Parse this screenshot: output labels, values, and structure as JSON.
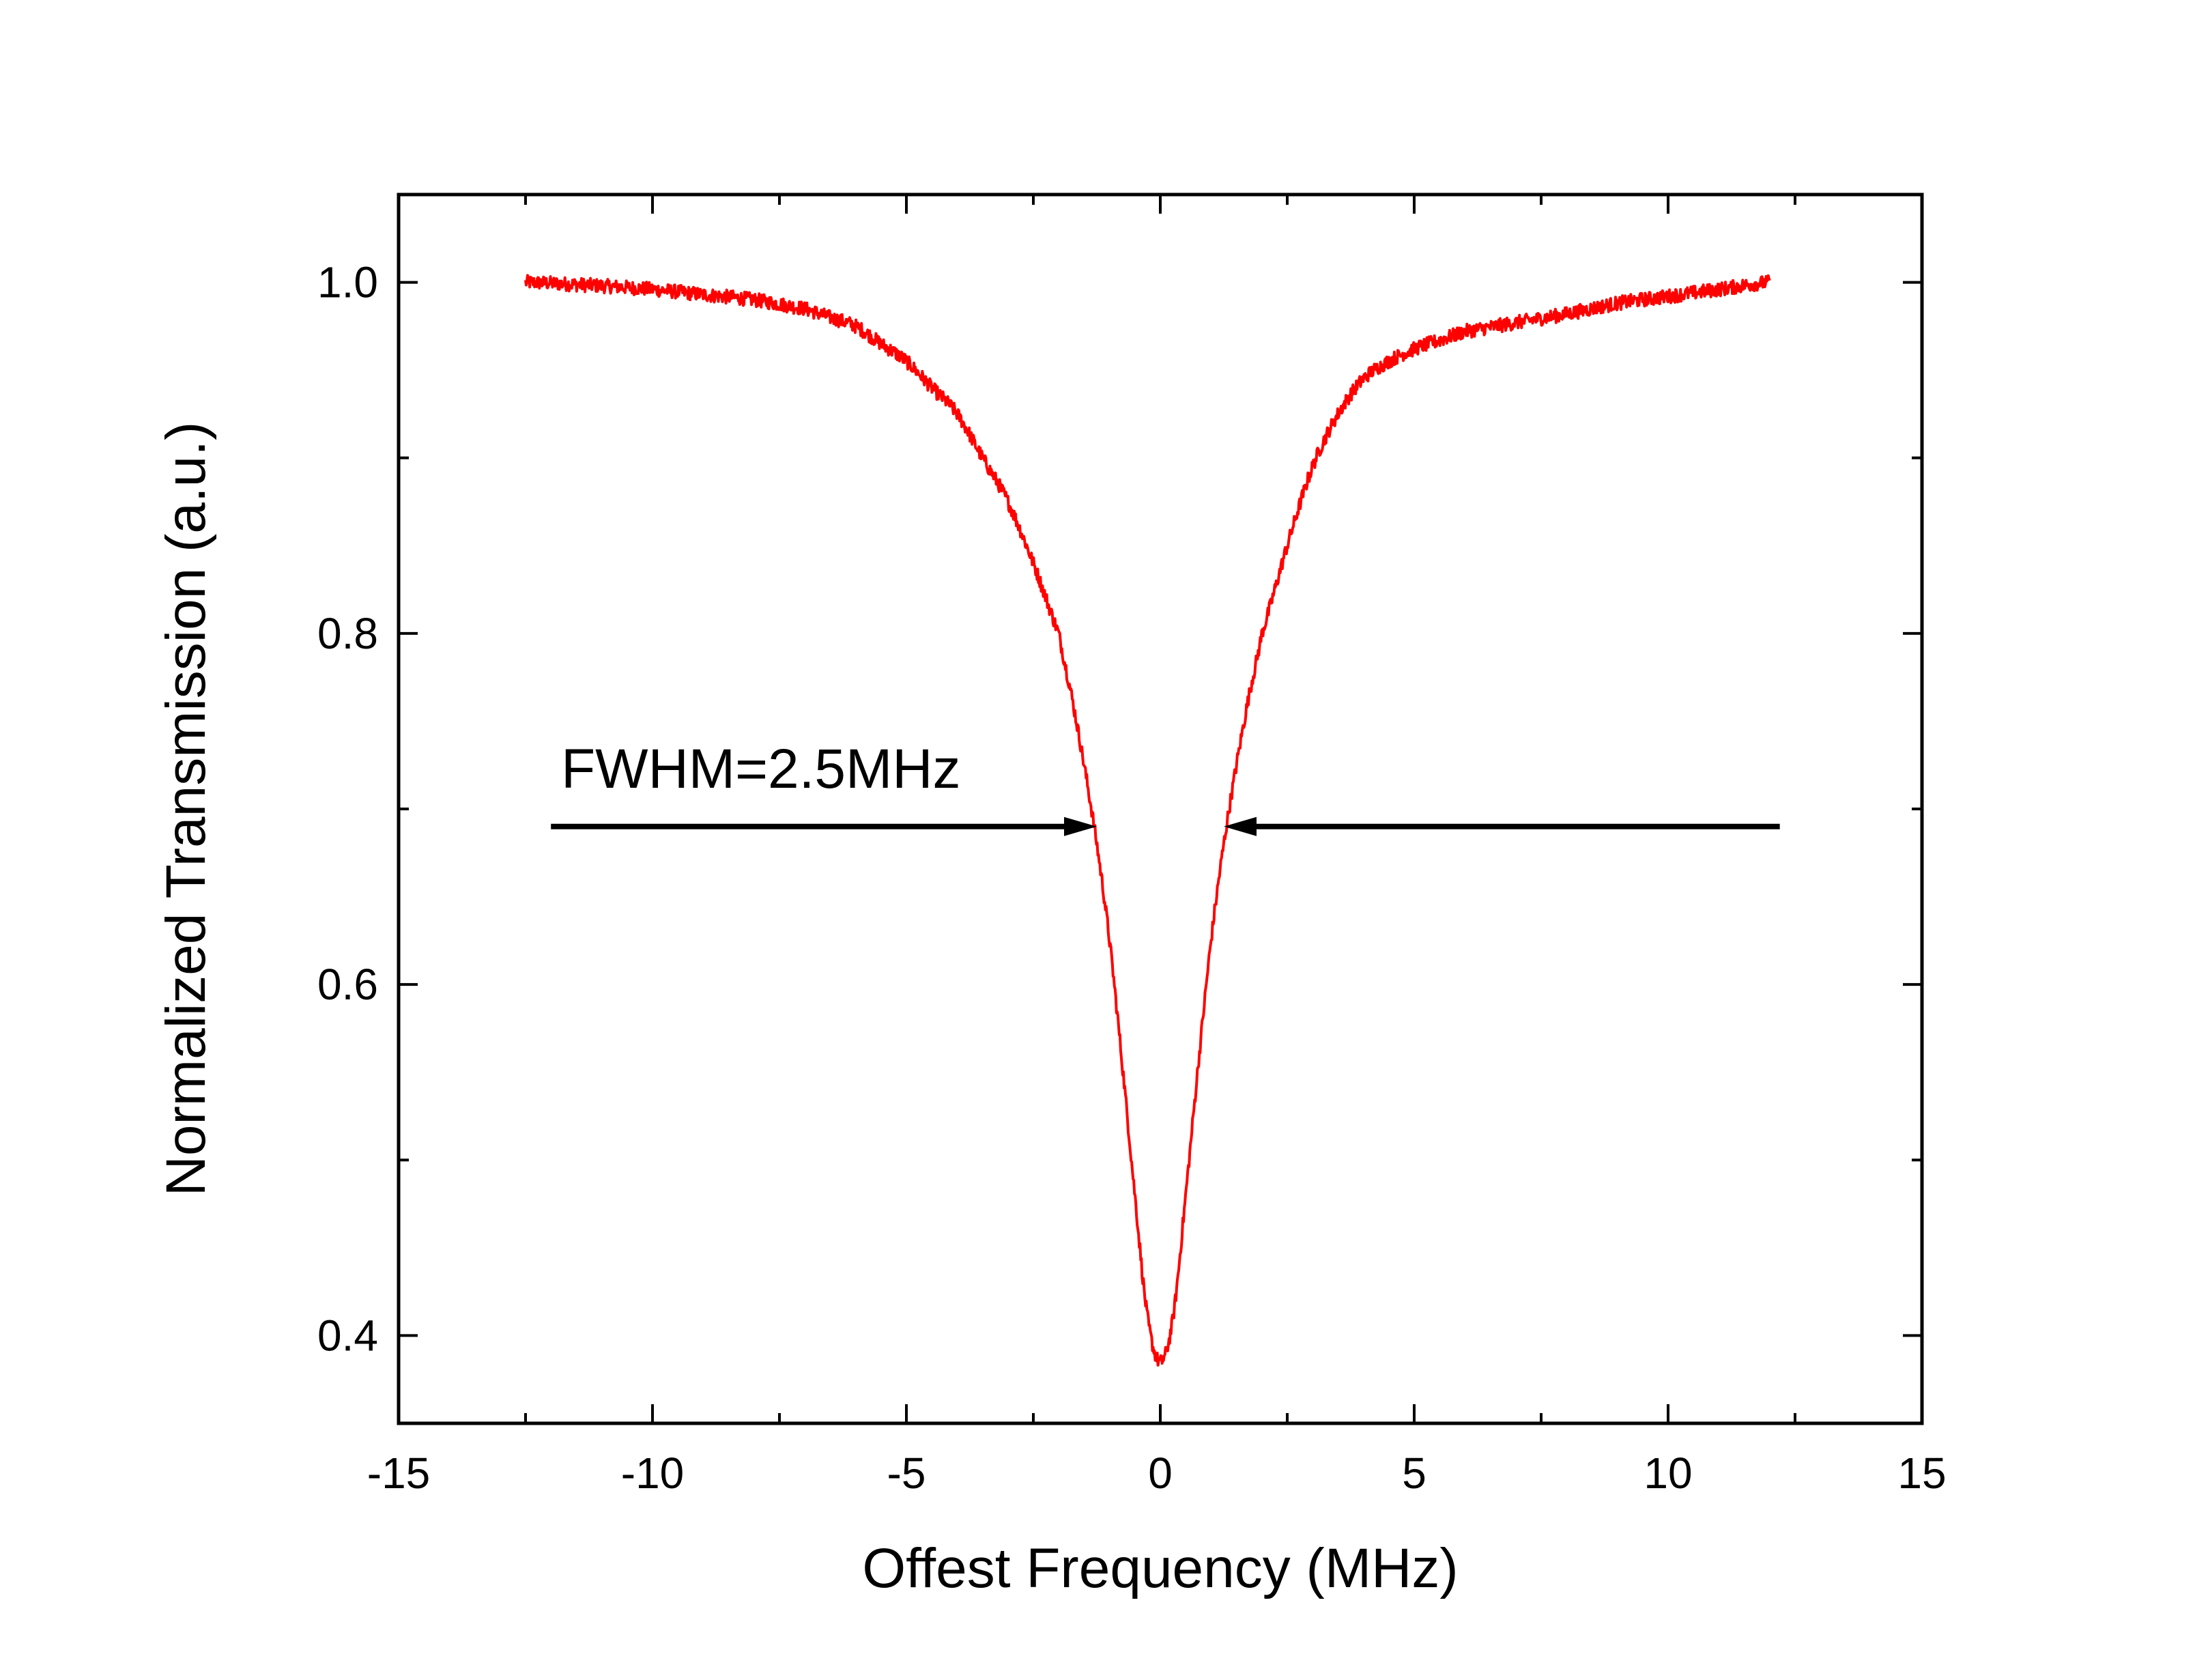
{
  "chart_data": {
    "type": "line",
    "title": "",
    "xlabel": "Offest Frequency (MHz)",
    "ylabel": "Normalized Transmission (a.u.)",
    "xlim": [
      -15,
      15
    ],
    "ylim": [
      0.35,
      1.05
    ],
    "x_ticks": [
      -15,
      -10,
      -5,
      0,
      5,
      10,
      15
    ],
    "x_tick_labels": [
      "-15",
      "-10",
      "-5",
      "0",
      "5",
      "10",
      "15"
    ],
    "y_ticks": [
      0.4,
      0.6,
      0.8,
      1.0
    ],
    "y_tick_labels": [
      "0.4",
      "0.6",
      "0.8",
      "1.0"
    ],
    "x_minor_step": 2.5,
    "y_minor_step": 0.1,
    "grid": false,
    "legend": "none",
    "series": [
      {
        "name": "Transmission",
        "color": "#ff0000",
        "x": [
          -12.5,
          -11,
          -10,
          -9,
          -8,
          -7,
          -6.5,
          -6,
          -5.5,
          -5,
          -4.5,
          -4,
          -3.5,
          -3,
          -2.5,
          -2,
          -1.75,
          -1.5,
          -1.25,
          -1,
          -0.75,
          -0.5,
          -0.25,
          0,
          0.25,
          0.5,
          0.75,
          1,
          1.25,
          1.5,
          1.75,
          2,
          2.5,
          3,
          3.5,
          4,
          4.5,
          5,
          5.5,
          6,
          7,
          8,
          9,
          10,
          11,
          12
        ],
        "y": [
          1.0,
          0.998,
          0.996,
          0.993,
          0.99,
          0.985,
          0.98,
          0.975,
          0.965,
          0.955,
          0.94,
          0.925,
          0.9,
          0.875,
          0.84,
          0.8,
          0.765,
          0.725,
          0.68,
          0.625,
          0.555,
          0.48,
          0.41,
          0.385,
          0.41,
          0.48,
          0.555,
          0.625,
          0.68,
          0.725,
          0.765,
          0.8,
          0.85,
          0.895,
          0.925,
          0.945,
          0.955,
          0.962,
          0.967,
          0.972,
          0.977,
          0.982,
          0.988,
          0.992,
          0.996,
          1.0
        ],
        "noise": 0.004
      }
    ],
    "annotations": [
      {
        "text": "FWHM=2.5MHz",
        "arrow_y": 0.69,
        "left_arrow_from_x": -12,
        "left_arrow_to_x": -1.25,
        "right_arrow_from_x": 12.2,
        "right_arrow_to_x": 1.25,
        "text_x": -11.8,
        "text_y": 0.712
      }
    ],
    "colors": {
      "line": "#ff0000",
      "axes": "#000000",
      "arrow": "#000000"
    }
  }
}
